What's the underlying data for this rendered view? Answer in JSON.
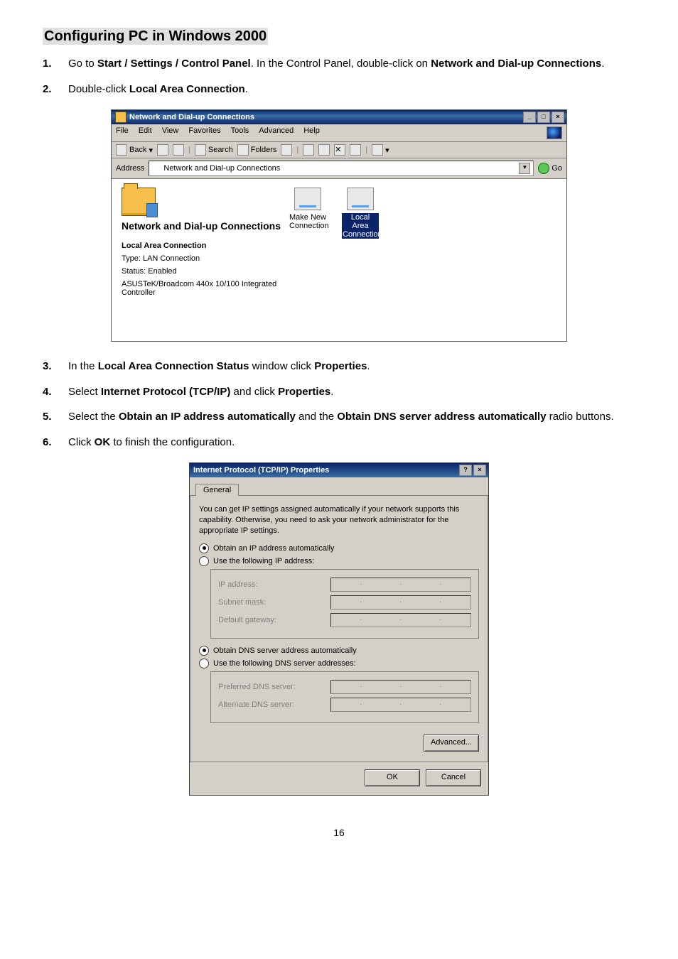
{
  "heading": "Configuring PC in Windows 2000",
  "steps_top": [
    {
      "num": "1.",
      "parts": [
        "Go to ",
        {
          "b": "Start / Settings / Control Panel"
        },
        ". In the Control Panel, double-click on ",
        {
          "b": "Network and Dial-up Connections"
        },
        "."
      ]
    },
    {
      "num": "2.",
      "parts": [
        "Double-click ",
        {
          "b": "Local Area Connection"
        },
        "."
      ]
    }
  ],
  "win1": {
    "title": "Network and Dial-up Connections",
    "menus": [
      "File",
      "Edit",
      "View",
      "Favorites",
      "Tools",
      "Advanced",
      "Help"
    ],
    "toolbar": [
      "Back",
      "Search",
      "Folders"
    ],
    "addr_label": "Address",
    "addr_value": "Network and Dial-up Connections",
    "go": "Go",
    "left_title": "Network and Dial-up Connections",
    "left_sub": "Local Area Connection",
    "left_lines": [
      "Type: LAN Connection",
      "Status: Enabled",
      "ASUSTeK/Broadcom 440x 10/100 Integrated Controller"
    ],
    "icons": [
      {
        "t1": "Make New",
        "t2": "Connection",
        "sel": false
      },
      {
        "t1": "Local Area",
        "t2": "Connection",
        "sel": true
      }
    ]
  },
  "steps_mid": [
    {
      "num": "3.",
      "parts": [
        "In the ",
        {
          "b": "Local Area Connection Status"
        },
        " window click ",
        {
          "b": "Properties"
        },
        "."
      ]
    },
    {
      "num": "4.",
      "parts": [
        "Select ",
        {
          "b": "Internet Protocol (TCP/IP)"
        },
        " and click ",
        {
          "b": "Properties"
        },
        "."
      ]
    },
    {
      "num": "5.",
      "parts": [
        "Select the ",
        {
          "b": "Obtain an IP address automatically"
        },
        " and the ",
        {
          "b": "Obtain DNS server address automatically"
        },
        " radio buttons."
      ]
    },
    {
      "num": "6.",
      "parts": [
        "Click ",
        {
          "b": "OK"
        },
        " to finish the configuration."
      ]
    }
  ],
  "dialog": {
    "title": "Internet Protocol (TCP/IP) Properties",
    "tab": "General",
    "desc": "You can get IP settings assigned automatically if your network supports this capability. Otherwise, you need to ask your network administrator for the appropriate IP settings.",
    "r1": "Obtain an IP address automatically",
    "r2": "Use the following IP address:",
    "f_ip": "IP address:",
    "f_mask": "Subnet mask:",
    "f_gw": "Default gateway:",
    "r3": "Obtain DNS server address automatically",
    "r4": "Use the following DNS server addresses:",
    "f_pdns": "Preferred DNS server:",
    "f_adns": "Alternate DNS server:",
    "adv": "Advanced...",
    "ok": "OK",
    "cancel": "Cancel"
  },
  "pagenum": "16"
}
